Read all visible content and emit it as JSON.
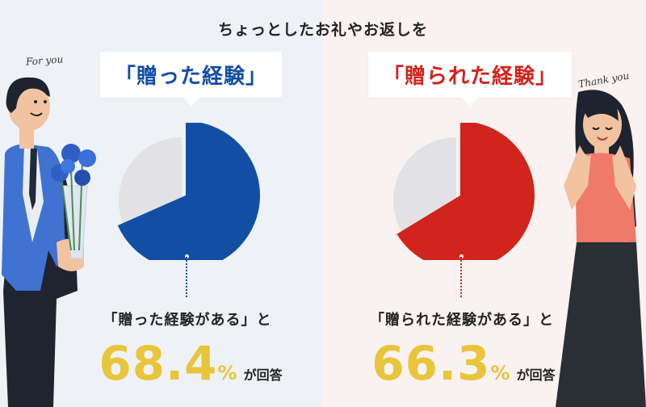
{
  "headline": "ちょっとしたお礼やお返しを",
  "left": {
    "bubble": "「贈った経験」",
    "caption": "「贈った経験がある」と",
    "value": "68.4",
    "unit": "%",
    "suffix": "が回答",
    "script": "For you"
  },
  "right": {
    "bubble": "「贈られた経験」",
    "caption": "「贈られた経験がある」と",
    "value": "66.3",
    "unit": "%",
    "suffix": "が回答",
    "script": "Thank you"
  },
  "colors": {
    "blue": "#134ea5",
    "red": "#d0241c",
    "gray": "#e2e2e4",
    "yellow": "#e8c53a"
  },
  "chart_data": [
    {
      "type": "pie",
      "title": "「贈った経験」",
      "categories": [
        "贈った経験がある",
        ""
      ],
      "values": [
        68.4,
        31.6
      ],
      "colors": [
        "#134ea5",
        "#e2e2e4"
      ]
    },
    {
      "type": "pie",
      "title": "「贈られた経験」",
      "categories": [
        "贈られた経験がある",
        ""
      ],
      "values": [
        66.3,
        33.7
      ],
      "colors": [
        "#d0241c",
        "#e2e2e4"
      ]
    }
  ]
}
